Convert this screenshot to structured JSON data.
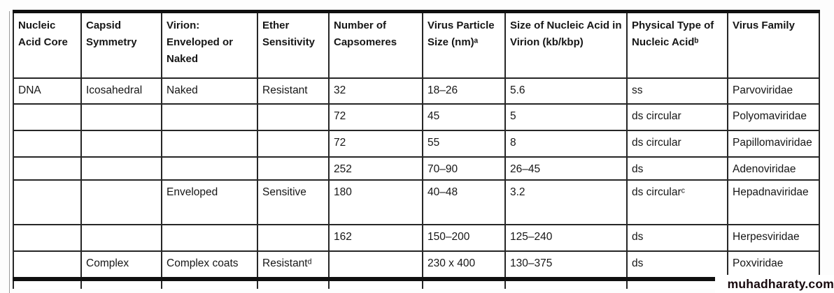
{
  "page": {
    "watermark": "muhadharaty.com"
  },
  "table": {
    "columns": [
      "Nucleic Acid Core",
      "Capsid Symmetry",
      "Virion: Enveloped or Naked",
      "Ether Sensitivity",
      "Number of Capsomeres",
      "Virus Particle Size (nm)ᵃ",
      "Size of Nucleic Acid in Virion (kb/kbp)",
      "Physical Type of Nucleic Acidᵇ",
      "Virus Family"
    ],
    "rows": [
      [
        "DNA",
        "Icosahedral",
        "Naked",
        "Resistant",
        "32",
        "18–26",
        "5.6",
        "ss",
        "Parvoviridae"
      ],
      [
        "",
        "",
        "",
        "",
        "72",
        "45",
        "5",
        "ds circular",
        "Polyomaviridae"
      ],
      [
        "",
        "",
        "",
        "",
        "72",
        "55",
        "8",
        "ds circular",
        "Papillomaviridae"
      ],
      [
        "",
        "",
        "",
        "",
        "252",
        "70–90",
        "26–45",
        "ds",
        "Adenoviridae"
      ],
      [
        "",
        "",
        "Enveloped",
        "Sensitive",
        "180",
        "40–48",
        "3.2",
        "ds circularᶜ",
        "Hepadnaviridae"
      ],
      [
        "",
        "",
        "",
        "",
        "162",
        "150–200",
        "125–240",
        "ds",
        "Herpesviridae"
      ],
      [
        "",
        "Complex",
        "Complex coats",
        "Resistantᵈ",
        "",
        "230 x 400",
        "130–375",
        "ds",
        "Poxviridae"
      ]
    ]
  }
}
